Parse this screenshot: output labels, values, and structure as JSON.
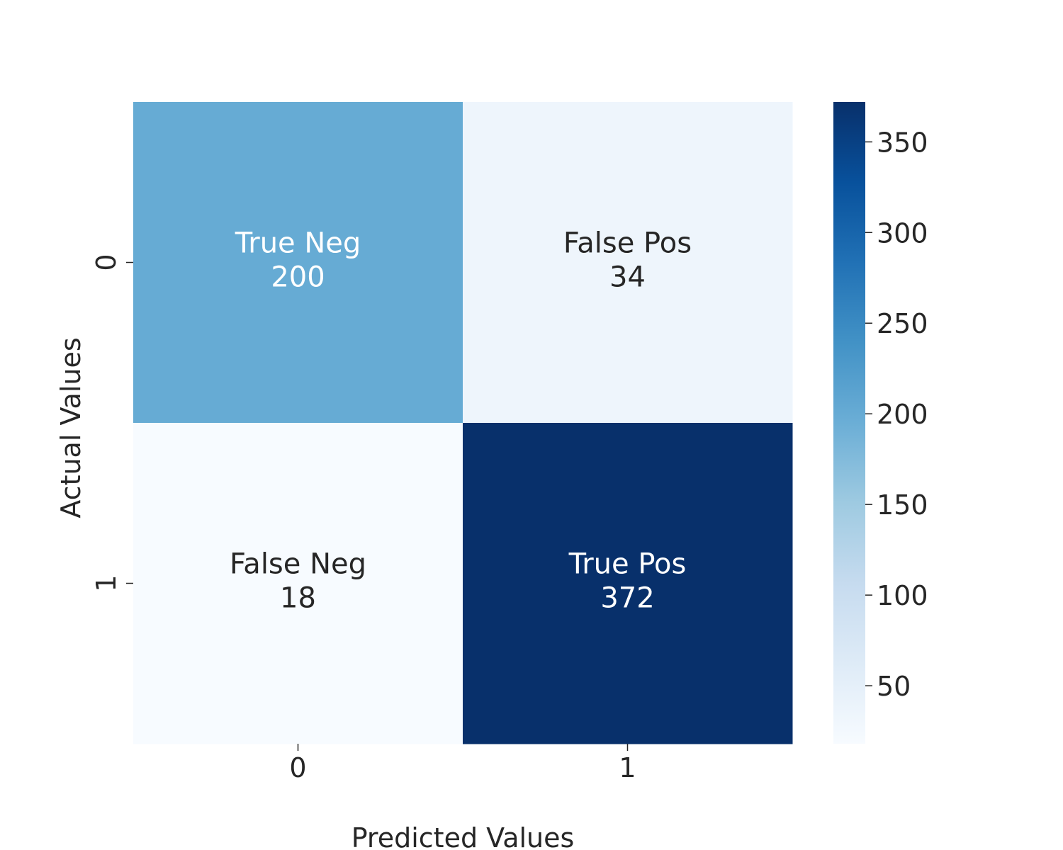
{
  "chart_data": {
    "type": "heatmap",
    "title": "",
    "xlabel": "Predicted Values",
    "ylabel": "Actual Values",
    "x_categories": [
      "0",
      "1"
    ],
    "y_categories": [
      "0",
      "1"
    ],
    "cells": [
      [
        {
          "group": "True Neg",
          "value": 200,
          "value_label": "200"
        },
        {
          "group": "False Pos",
          "value": 34,
          "value_label": "34"
        }
      ],
      [
        {
          "group": "False Neg",
          "value": 18,
          "value_label": "18"
        },
        {
          "group": "True Pos",
          "value": 372,
          "value_label": "372"
        }
      ]
    ],
    "colormap": "Blues",
    "colorbar": {
      "range": [
        18,
        372
      ],
      "ticks": [
        50,
        100,
        150,
        200,
        250,
        300,
        350
      ],
      "tick_labels": [
        "50",
        "100",
        "150",
        "200",
        "250",
        "300",
        "350"
      ]
    },
    "text_colors": {
      "dark_cell": "#ffffff",
      "light_cell": "#262626"
    },
    "grid": false
  }
}
